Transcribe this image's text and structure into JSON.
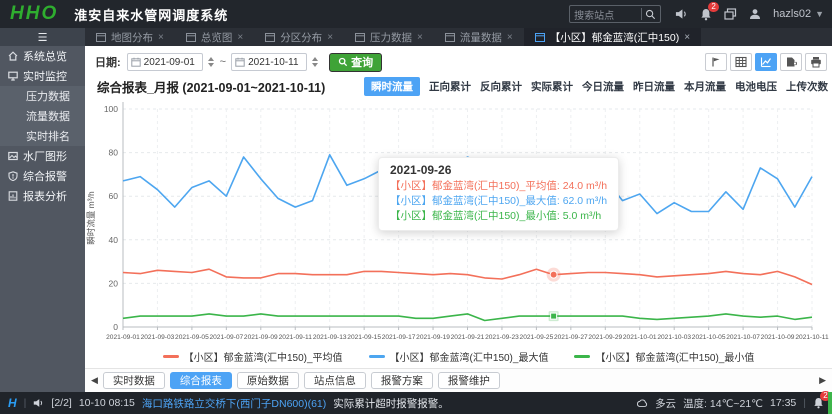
{
  "header": {
    "logo": "HHO",
    "app_title": "淮安自来水管网调度系统",
    "search_placeholder": "搜索站点",
    "username": "hazls02",
    "notif_count": "2",
    "icons": [
      "search-icon",
      "speaker-icon",
      "bell-icon",
      "windows-icon",
      "user-icon"
    ]
  },
  "tabs": [
    {
      "label": "地图分布",
      "close": "×"
    },
    {
      "label": "总览图",
      "close": "×"
    },
    {
      "label": "分区分布",
      "close": "×"
    },
    {
      "label": "压力数据",
      "close": "×"
    },
    {
      "label": "流量数据",
      "close": "×"
    },
    {
      "label": "【小区】郁金蓝湾(汇中150)",
      "close": "×",
      "active": true
    }
  ],
  "sidebar": {
    "menu_toggle": "☰",
    "items": [
      {
        "label": "系统总览",
        "icon": "home-icon"
      },
      {
        "label": "实时监控",
        "icon": "monitor-icon"
      },
      {
        "label": "压力数据",
        "sub": true
      },
      {
        "label": "流量数据",
        "sub": true
      },
      {
        "label": "实时排名",
        "sub": true
      },
      {
        "label": "水厂图形",
        "icon": "image-icon"
      },
      {
        "label": "综合报警",
        "icon": "alarm-shield-icon"
      },
      {
        "label": "报表分析",
        "icon": "report-icon"
      }
    ]
  },
  "toolbar": {
    "date_label": "日期:",
    "date_from": "2021-09-01",
    "date_to": "2021-10-11",
    "range_sep": "~",
    "query_label": "查询",
    "right_icons": [
      "flag-icon",
      "table-icon",
      "line-chart-icon",
      "export-icon",
      "print-icon"
    ],
    "active_icon": "line-chart-icon"
  },
  "report": {
    "title": "综合报表_月报 (2021-09-01~2021-10-11)",
    "metric_tabs": [
      "瞬时流量",
      "正向累计",
      "反向累计",
      "实际累计",
      "今日流量",
      "昨日流量",
      "本月流量",
      "电池电压",
      "上传次数"
    ],
    "active_metric": "瞬时流量"
  },
  "chart_data": {
    "type": "line",
    "title": "综合报表_月报 (2021-09-01~2021-10-11)",
    "ylabel": "瞬时流量 m³/h",
    "ylim": [
      0,
      100
    ],
    "yticks": [
      0,
      20,
      40,
      60,
      80,
      100
    ],
    "grid": true,
    "legend_position": "bottom",
    "highlight_index": 25,
    "x_dates": [
      "2021-09-01",
      "2021-09-02",
      "2021-09-03",
      "2021-09-04",
      "2021-09-05",
      "2021-09-06",
      "2021-09-07",
      "2021-09-08",
      "2021-09-09",
      "2021-09-10",
      "2021-09-11",
      "2021-09-12",
      "2021-09-13",
      "2021-09-14",
      "2021-09-15",
      "2021-09-16",
      "2021-09-17",
      "2021-09-18",
      "2021-09-19",
      "2021-09-20",
      "2021-09-21",
      "2021-09-22",
      "2021-09-23",
      "2021-09-24",
      "2021-09-25",
      "2021-09-26",
      "2021-09-27",
      "2021-09-28",
      "2021-09-29",
      "2021-09-30",
      "2021-10-01",
      "2021-10-02",
      "2021-10-03",
      "2021-10-04",
      "2021-10-05",
      "2021-10-06",
      "2021-10-07",
      "2021-10-08",
      "2021-10-09",
      "2021-10-10",
      "2021-10-11"
    ],
    "series": [
      {
        "name": "【小区】郁金蓝湾(汇中150)_平均值",
        "color": "#f3705a",
        "marker": "circle",
        "values": [
          25,
          24.5,
          26,
          25.5,
          25,
          26.5,
          23,
          22.5,
          22.5,
          24.5,
          24.5,
          24,
          24,
          24,
          25.5,
          25.5,
          25,
          24.5,
          24,
          24.5,
          24,
          22.5,
          22,
          24,
          26.5,
          24,
          24.5,
          25,
          25,
          24.5,
          24,
          23,
          23.5,
          24,
          24.5,
          25.5,
          24.5,
          24,
          25.5,
          23,
          19.5
        ]
      },
      {
        "name": "【小区】郁金蓝湾(汇中150)_最大值",
        "color": "#4da6f0",
        "marker": "circle",
        "values": [
          67,
          69,
          63,
          55,
          64,
          67,
          60,
          78,
          68,
          59,
          55,
          58,
          79,
          65,
          68,
          72,
          68,
          72,
          75,
          73,
          78,
          74,
          76,
          76,
          70,
          62,
          69,
          64,
          68,
          58,
          61,
          52,
          57,
          53,
          53,
          62,
          54,
          73,
          68,
          55,
          69
        ]
      },
      {
        "name": "【小区】郁金蓝湾(汇中150)_最小值",
        "color": "#3bb54a",
        "marker": "square",
        "values": [
          4,
          5,
          5,
          5,
          5,
          6,
          5,
          5,
          6,
          5,
          5,
          5,
          5,
          5,
          5,
          5,
          5,
          4,
          4,
          5,
          6,
          3,
          4,
          5,
          5,
          5,
          5,
          5,
          5,
          5,
          4,
          3.5,
          4,
          4.5,
          5,
          6,
          5,
          4.5,
          5,
          3.5,
          4.5
        ]
      }
    ]
  },
  "tooltip": {
    "date": "2021-09-26",
    "rows": [
      {
        "label": "【小区】郁金蓝湾(汇中150)_平均值:",
        "value": "24.0 m³/h",
        "color": "#f3705a"
      },
      {
        "label": "【小区】郁金蓝湾(汇中150)_最大值:",
        "value": "62.0 m³/h",
        "color": "#4da6f0"
      },
      {
        "label": "【小区】郁金蓝湾(汇中150)_最小值:",
        "value": "5.0 m³/h",
        "color": "#3bb54a"
      }
    ]
  },
  "bottom_tabs": [
    "实时数据",
    "综合报表",
    "原始数据",
    "站点信息",
    "报警方案",
    "报警维护"
  ],
  "bottom_active": "综合报表",
  "statusbar": {
    "logo": "H",
    "page": "[2/2]",
    "time": "10-10 08:15",
    "station_link": "海口路铁路立交桥下(西门子DN600)(61)",
    "message": "实际累计超时报警报警。",
    "weather": "多云",
    "temp": "温度: 14℃~21℃",
    "clock": "17:35",
    "alarm_count": "2"
  },
  "colors": {
    "accent_blue": "#4da3f5",
    "button_green": "#3fa337",
    "alarm_red": "#e43b3b",
    "statusbar_green": "#3db54a"
  }
}
